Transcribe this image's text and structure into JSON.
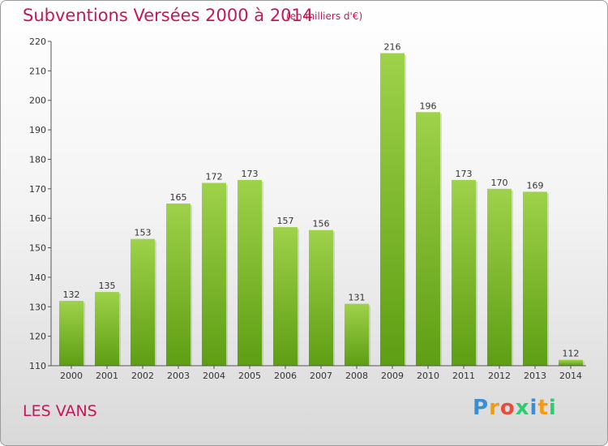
{
  "chart_data": {
    "type": "bar",
    "title": "Subventions Versées 2000 à 2014",
    "subtitle": "(en milliers d'€)",
    "categories": [
      "2000",
      "2001",
      "2002",
      "2003",
      "2004",
      "2005",
      "2006",
      "2007",
      "2008",
      "2009",
      "2010",
      "2011",
      "2012",
      "2013",
      "2014"
    ],
    "values": [
      132,
      135,
      153,
      165,
      172,
      173,
      157,
      156,
      131,
      216,
      196,
      173,
      170,
      169,
      112
    ],
    "ylim": [
      110,
      220
    ],
    "yticks": [
      110,
      120,
      130,
      140,
      150,
      160,
      170,
      180,
      190,
      200,
      210,
      220
    ],
    "grid": false,
    "bar_color_top": "#9ed24a",
    "bar_color_bottom": "#5e9e14"
  },
  "commune": "LES VANS",
  "logo": {
    "letters": [
      "P",
      "r",
      "o",
      "x",
      "i",
      "t",
      "i"
    ],
    "colors": [
      "#3a8fd4",
      "#f39c12",
      "#e74c3c",
      "#2ecc71",
      "#3a8fd4",
      "#f39c12",
      "#2ecc71"
    ]
  }
}
